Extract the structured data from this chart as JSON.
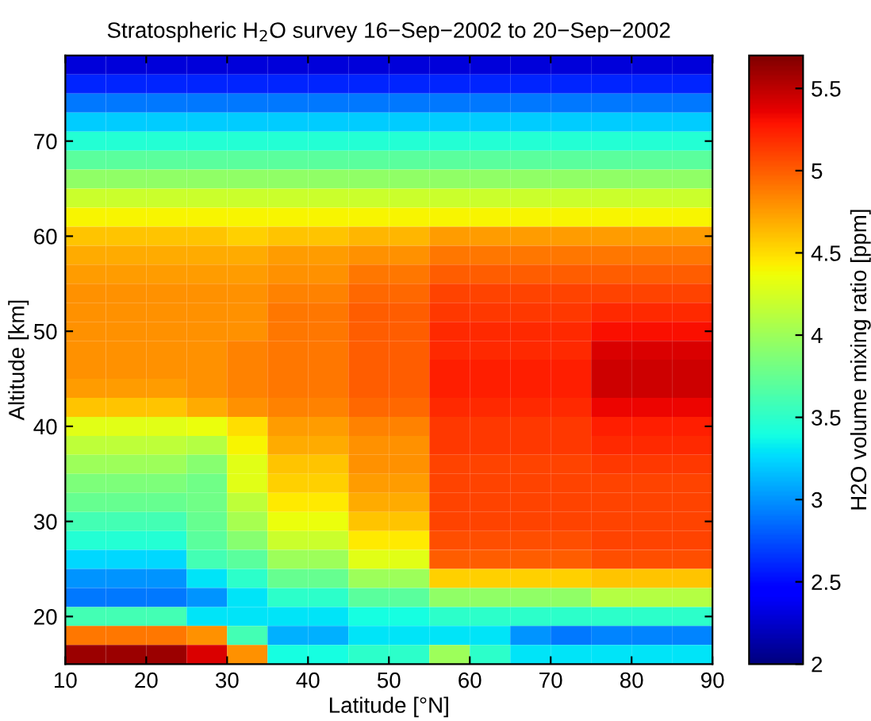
{
  "chart_data": {
    "type": "heatmap",
    "title": "Stratospheric H$_{2}$O survey 16−Sep−2002 to 20−Sep−2002",
    "xlabel": "Latitude [°N]",
    "ylabel": "Altitude [km]",
    "clabel": "H2O volume mixing ratio [ppm]",
    "x": [
      12.5,
      17.5,
      22.5,
      27.5,
      32.5,
      37.5,
      42.5,
      47.5,
      52.5,
      57.5,
      62.5,
      67.5,
      72.5,
      77.5,
      82.5,
      87.5
    ],
    "y": [
      78,
      76,
      74,
      72,
      70,
      68,
      66,
      64,
      62,
      60,
      58,
      56,
      54,
      52,
      50,
      48,
      46,
      44,
      42,
      40,
      38,
      36,
      34,
      32,
      30,
      28,
      26,
      24,
      22,
      20,
      18,
      16
    ],
    "xlim": [
      10,
      90
    ],
    "ylim": [
      15,
      79
    ],
    "xticks": [
      10,
      20,
      30,
      40,
      50,
      60,
      70,
      80,
      90
    ],
    "yticks": [
      20,
      30,
      40,
      50,
      60,
      70
    ],
    "clim": [
      2,
      5.7
    ],
    "cticks": [
      2,
      2.5,
      3,
      3.5,
      4,
      4.5,
      5,
      5.5
    ],
    "cells": [
      [
        2.3,
        2.3,
        2.3,
        2.3,
        2.3,
        2.3,
        2.3,
        2.3,
        2.3,
        2.3,
        2.3,
        2.3,
        2.3,
        2.3,
        2.3,
        2.3
      ],
      [
        2.6,
        2.6,
        2.6,
        2.6,
        2.6,
        2.6,
        2.6,
        2.6,
        2.6,
        2.6,
        2.6,
        2.6,
        2.6,
        2.6,
        2.6,
        2.6
      ],
      [
        2.9,
        2.9,
        2.9,
        2.9,
        2.9,
        2.9,
        2.9,
        2.9,
        2.9,
        2.9,
        2.9,
        2.9,
        2.9,
        2.9,
        2.9,
        2.9
      ],
      [
        3.2,
        3.2,
        3.2,
        3.2,
        3.2,
        3.2,
        3.2,
        3.2,
        3.2,
        3.2,
        3.2,
        3.2,
        3.2,
        3.2,
        3.2,
        3.2
      ],
      [
        3.45,
        3.45,
        3.45,
        3.45,
        3.45,
        3.45,
        3.45,
        3.45,
        3.45,
        3.45,
        3.45,
        3.45,
        3.45,
        3.45,
        3.45,
        3.45
      ],
      [
        3.7,
        3.7,
        3.7,
        3.7,
        3.7,
        3.7,
        3.7,
        3.7,
        3.7,
        3.7,
        3.7,
        3.7,
        3.7,
        3.7,
        3.7,
        3.7
      ],
      [
        3.95,
        3.95,
        3.95,
        3.95,
        3.95,
        3.95,
        3.95,
        3.95,
        3.95,
        3.95,
        3.95,
        3.95,
        3.95,
        3.95,
        3.95,
        3.95
      ],
      [
        4.2,
        4.2,
        4.2,
        4.2,
        4.2,
        4.2,
        4.2,
        4.2,
        4.2,
        4.2,
        4.2,
        4.2,
        4.2,
        4.2,
        4.2,
        4.2
      ],
      [
        4.4,
        4.4,
        4.4,
        4.4,
        4.4,
        4.4,
        4.4,
        4.4,
        4.4,
        4.4,
        4.4,
        4.4,
        4.4,
        4.4,
        4.4,
        4.4
      ],
      [
        4.6,
        4.6,
        4.6,
        4.6,
        4.55,
        4.6,
        4.6,
        4.65,
        4.65,
        4.75,
        4.75,
        4.75,
        4.75,
        4.75,
        4.75,
        4.75
      ],
      [
        4.7,
        4.7,
        4.7,
        4.7,
        4.7,
        4.75,
        4.75,
        4.8,
        4.8,
        4.9,
        4.9,
        4.9,
        4.9,
        4.9,
        4.9,
        4.9
      ],
      [
        4.75,
        4.75,
        4.75,
        4.75,
        4.75,
        4.8,
        4.8,
        4.9,
        4.9,
        5.0,
        5.0,
        5.0,
        5.0,
        5.0,
        5.0,
        5.0
      ],
      [
        4.8,
        4.8,
        4.8,
        4.8,
        4.8,
        4.85,
        4.85,
        4.95,
        4.95,
        5.1,
        5.1,
        5.1,
        5.1,
        5.1,
        5.1,
        5.1
      ],
      [
        4.8,
        4.8,
        4.8,
        4.8,
        4.8,
        4.9,
        4.9,
        5.0,
        5.0,
        5.15,
        5.15,
        5.15,
        5.15,
        5.2,
        5.2,
        5.2
      ],
      [
        4.8,
        4.8,
        4.8,
        4.8,
        4.8,
        4.9,
        4.9,
        5.0,
        5.0,
        5.2,
        5.2,
        5.2,
        5.2,
        5.3,
        5.3,
        5.3
      ],
      [
        4.8,
        4.8,
        4.8,
        4.8,
        4.85,
        4.9,
        4.9,
        5.0,
        5.0,
        5.2,
        5.2,
        5.2,
        5.2,
        5.4,
        5.4,
        5.4
      ],
      [
        4.8,
        4.8,
        4.8,
        4.8,
        4.85,
        4.9,
        4.9,
        5.0,
        5.0,
        5.25,
        5.25,
        5.25,
        5.25,
        5.45,
        5.45,
        5.45
      ],
      [
        4.75,
        4.75,
        4.75,
        4.8,
        4.85,
        4.9,
        4.9,
        5.0,
        5.0,
        5.25,
        5.25,
        5.25,
        5.25,
        5.45,
        5.45,
        5.45
      ],
      [
        4.6,
        4.6,
        4.6,
        4.7,
        4.8,
        4.85,
        4.85,
        4.95,
        4.95,
        5.2,
        5.2,
        5.2,
        5.2,
        5.35,
        5.35,
        5.35
      ],
      [
        4.3,
        4.3,
        4.3,
        4.35,
        4.5,
        4.75,
        4.75,
        4.85,
        4.85,
        5.15,
        5.15,
        5.15,
        5.15,
        5.25,
        5.25,
        5.25
      ],
      [
        4.15,
        4.15,
        4.15,
        4.1,
        4.4,
        4.7,
        4.7,
        4.8,
        4.8,
        5.15,
        5.15,
        5.15,
        5.15,
        5.2,
        5.2,
        5.2
      ],
      [
        4.0,
        4.0,
        4.0,
        3.9,
        4.3,
        4.6,
        4.6,
        4.8,
        4.8,
        5.1,
        5.1,
        5.1,
        5.1,
        5.15,
        5.15,
        5.15
      ],
      [
        3.85,
        3.85,
        3.85,
        3.8,
        4.3,
        4.55,
        4.55,
        4.75,
        4.75,
        5.1,
        5.1,
        5.1,
        5.1,
        5.1,
        5.1,
        5.1
      ],
      [
        3.75,
        3.75,
        3.75,
        3.8,
        4.15,
        4.45,
        4.45,
        4.7,
        4.7,
        5.1,
        5.1,
        5.1,
        5.1,
        5.1,
        5.1,
        5.1
      ],
      [
        3.6,
        3.6,
        3.6,
        3.75,
        4.05,
        4.35,
        4.35,
        4.6,
        4.6,
        5.1,
        5.1,
        5.1,
        5.1,
        5.1,
        5.1,
        5.1
      ],
      [
        3.45,
        3.45,
        3.45,
        3.7,
        3.9,
        4.2,
        4.2,
        4.45,
        4.45,
        5.05,
        5.05,
        5.05,
        5.05,
        5.1,
        5.1,
        5.1
      ],
      [
        3.25,
        3.25,
        3.25,
        3.6,
        3.7,
        4.0,
        4.0,
        4.3,
        4.3,
        5.0,
        5.0,
        5.0,
        5.0,
        5.05,
        5.05,
        5.05
      ],
      [
        3.0,
        3.0,
        3.0,
        3.3,
        3.5,
        3.75,
        3.75,
        4.0,
        4.0,
        4.55,
        4.55,
        4.55,
        4.55,
        4.6,
        4.6,
        4.6
      ],
      [
        2.9,
        2.9,
        2.9,
        3.0,
        3.3,
        3.5,
        3.5,
        3.7,
        3.7,
        3.95,
        3.95,
        3.95,
        3.95,
        4.1,
        4.1,
        4.1
      ],
      [
        3.6,
        3.6,
        3.6,
        3.3,
        3.3,
        3.3,
        3.3,
        3.4,
        3.4,
        3.5,
        3.5,
        3.5,
        3.5,
        3.5,
        3.5,
        3.5
      ],
      [
        4.9,
        4.9,
        4.9,
        4.8,
        3.6,
        3.1,
        3.1,
        3.3,
        3.3,
        3.3,
        3.3,
        3.0,
        2.9,
        2.95,
        2.95,
        2.95
      ],
      [
        5.6,
        5.6,
        5.6,
        5.4,
        4.8,
        3.4,
        3.4,
        3.5,
        3.5,
        4.0,
        3.5,
        3.3,
        3.3,
        3.3,
        3.3,
        3.3
      ]
    ]
  }
}
